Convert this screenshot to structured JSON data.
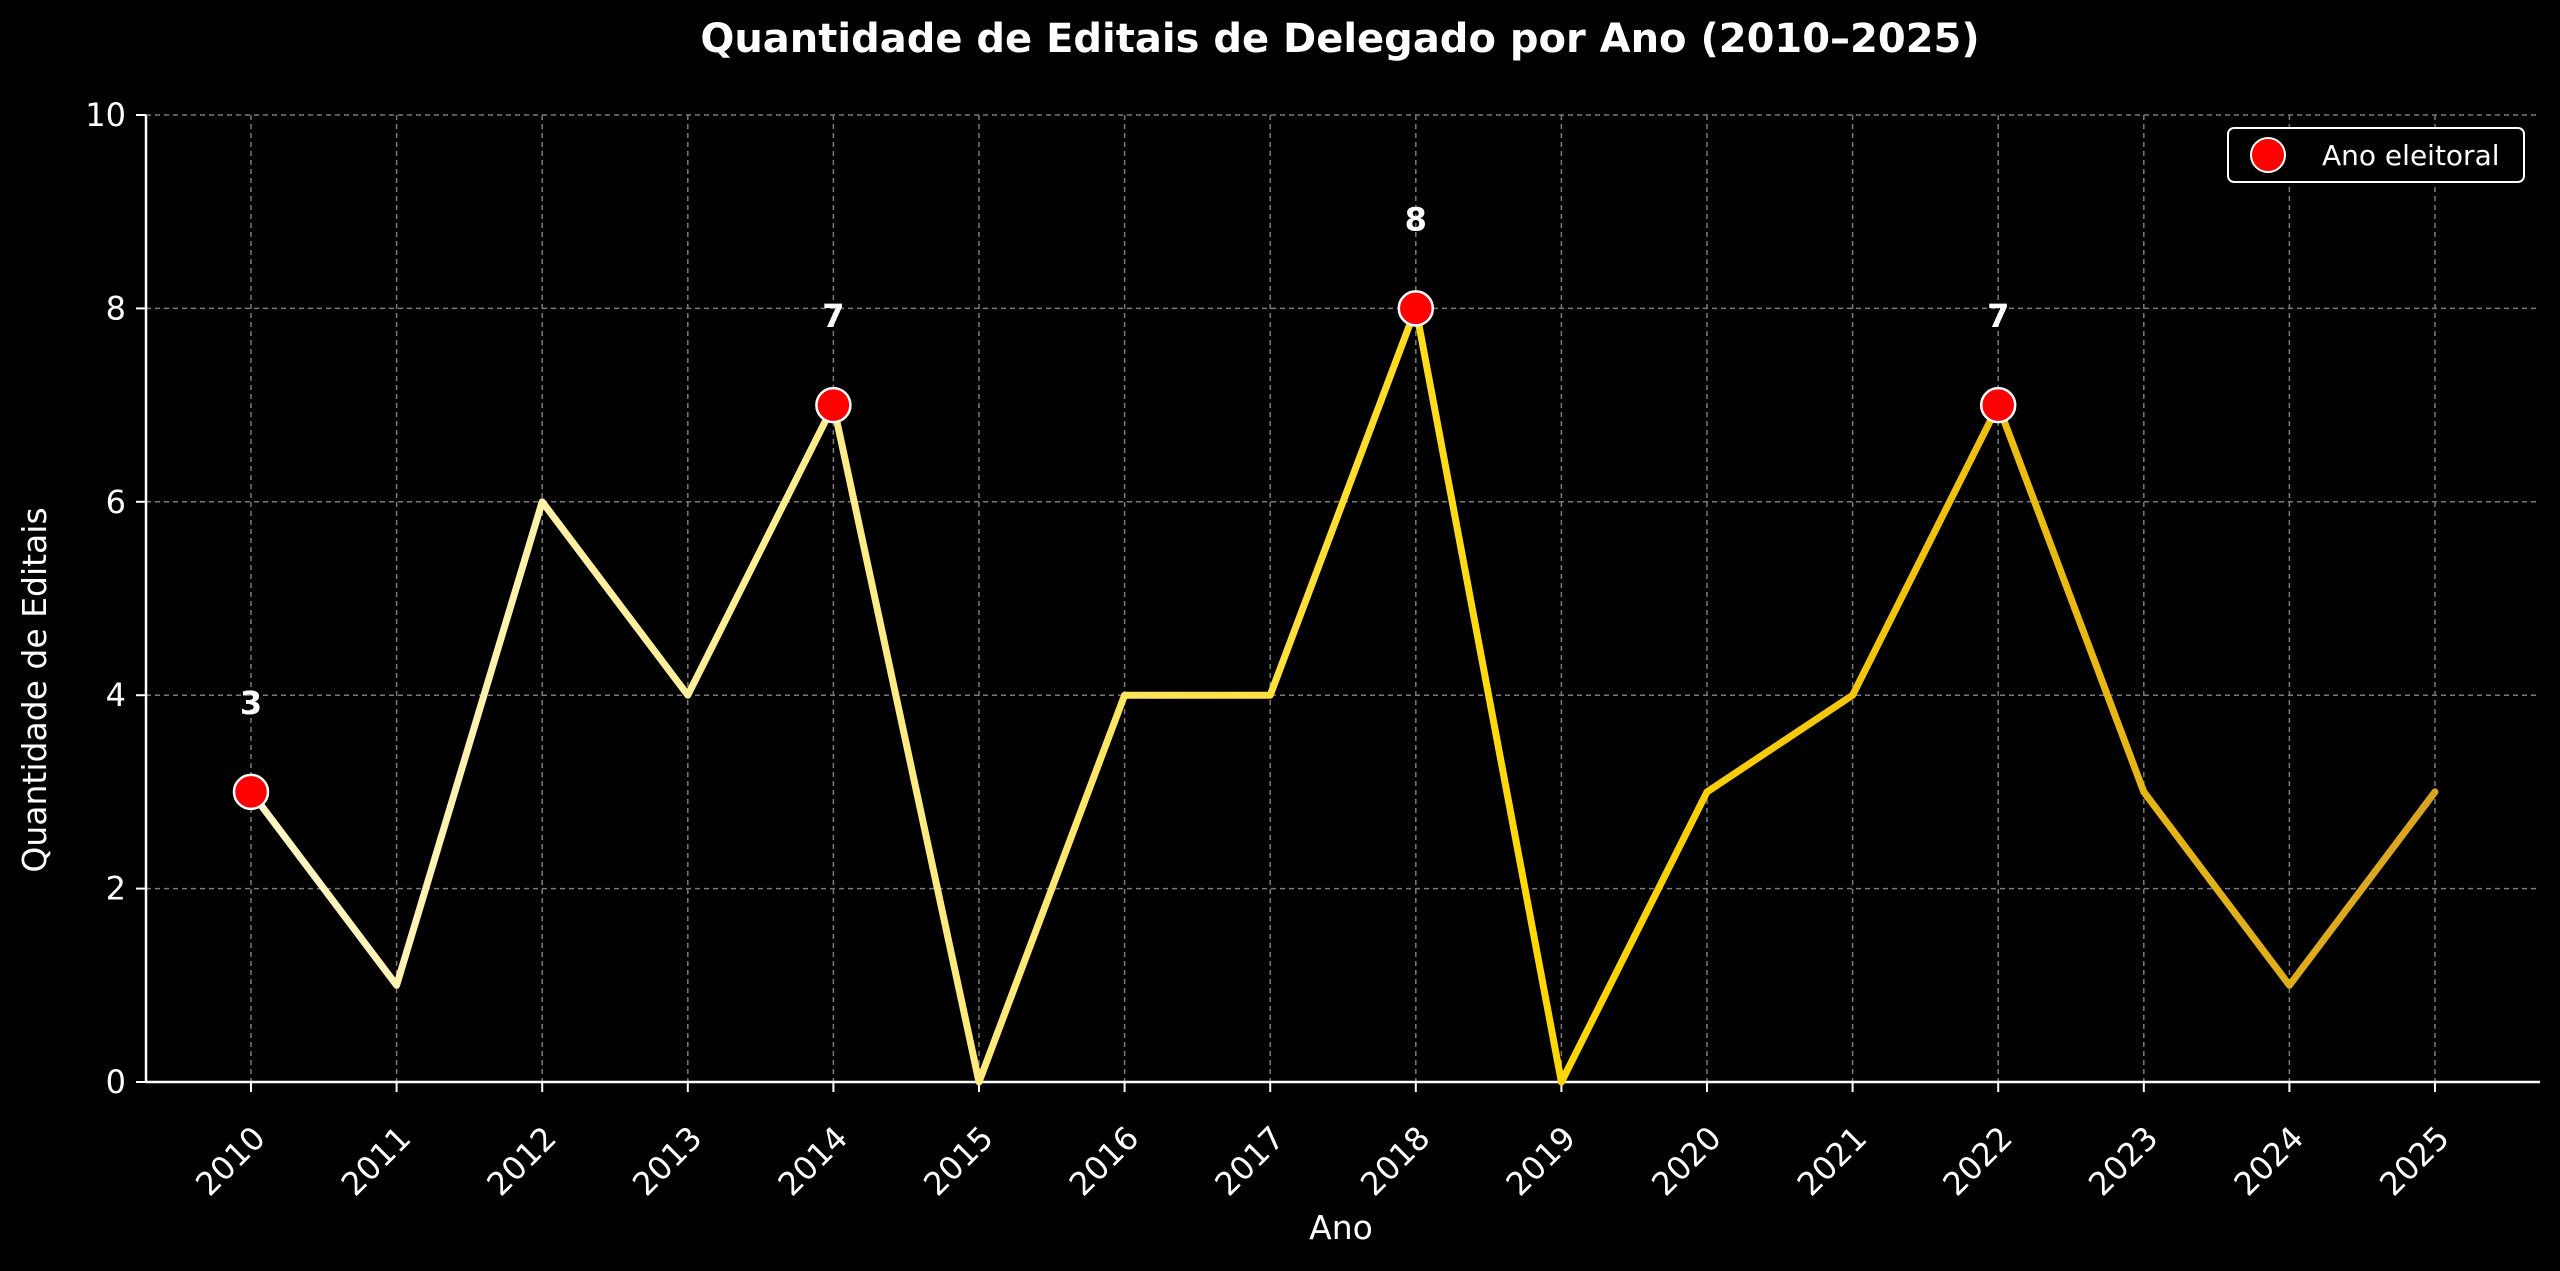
{
  "chart_data": {
    "type": "line",
    "title": "Quantidade de Editais de Delegado por Ano (2010–2025)",
    "xlabel": "Ano",
    "ylabel": "Quantidade de Editais",
    "categories": [
      "2010",
      "2011",
      "2012",
      "2013",
      "2014",
      "2015",
      "2016",
      "2017",
      "2018",
      "2019",
      "2020",
      "2021",
      "2022",
      "2023",
      "2024",
      "2025"
    ],
    "series": [
      {
        "values": [
          3,
          1,
          6,
          4,
          7,
          0,
          4,
          4,
          8,
          0,
          3,
          4,
          7,
          3,
          1,
          3
        ]
      }
    ],
    "highlight": {
      "name": "Ano eleitoral",
      "years": [
        "2010",
        "2014",
        "2018",
        "2022"
      ],
      "values": [
        3,
        7,
        8,
        7
      ],
      "labels": [
        "3",
        "7",
        "8",
        "7"
      ],
      "color": "#ff0000",
      "edge_color": "#ffffff"
    },
    "ylim": [
      0,
      10
    ],
    "yticks": [
      0,
      2,
      4,
      6,
      8,
      10
    ],
    "ytick_labels": [
      "0",
      "2",
      "4",
      "6",
      "8",
      "10"
    ],
    "grid": true,
    "legend": {
      "position": "top-right",
      "entries": [
        "Ano eleitoral"
      ]
    },
    "colors": {
      "background": "#000000",
      "axes": "#ffffff",
      "grid": "#7a7a7a",
      "line_gradient": [
        "#fff6c4",
        "#ffe978",
        "#ffd700",
        "#d9a521"
      ]
    }
  }
}
